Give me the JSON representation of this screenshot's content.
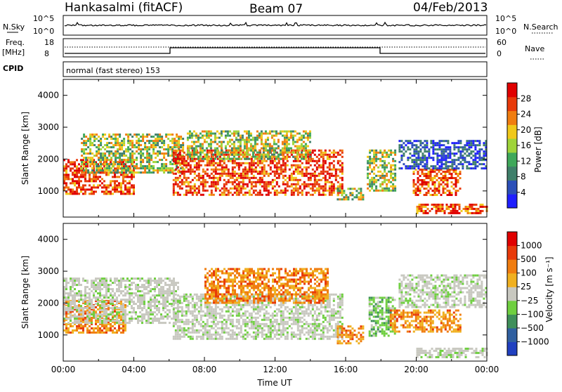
{
  "header": {
    "station": "Hankasalmi (fitACF)",
    "beam": "Beam 07",
    "date": "04/Feb/2013"
  },
  "top_panels": {
    "nsky_label": "N.Sky",
    "nsky_ticks": [
      "10^5",
      "10^0"
    ],
    "nsearch_label": "N.Search",
    "nsearch_ticks": [
      "10^5",
      "10^0"
    ],
    "freq_label_1": "Freq.",
    "freq_label_2": "[MHz]",
    "freq_ticks": [
      "18",
      "8"
    ],
    "nave_label": "Nave",
    "nave_ticks": [
      "60",
      "0"
    ],
    "cpid_label": "CPID",
    "cpid_text": "normal (fast stereo) 153"
  },
  "chart_data": [
    {
      "type": "heatmap",
      "panel": "power",
      "ylabel": "Slant Range [km]",
      "xlabel": "",
      "yticks": [
        "4000",
        "3000",
        "2000",
        "1000"
      ],
      "ylim": [
        180,
        4500
      ],
      "x_range_hours": [
        0,
        24
      ],
      "colorbar_label": "Power [dB]",
      "colorbar_ticks": [
        "28",
        "24",
        "20",
        "16",
        "12",
        "8",
        "4"
      ],
      "colors": [
        "#1f1fff",
        "#2b4fb8",
        "#3f7f6a",
        "#3fa85a",
        "#9fd43a",
        "#f0c81a",
        "#f07d10",
        "#e83a0a",
        "#e00000"
      ],
      "echo_regions": [
        {
          "t0": 0.0,
          "t1": 4.0,
          "r0": 900,
          "r1": 2000,
          "level": "high"
        },
        {
          "t0": 1.0,
          "t1": 6.8,
          "r0": 1600,
          "r1": 2800,
          "level": "mid"
        },
        {
          "t0": 6.2,
          "t1": 15.8,
          "r0": 850,
          "r1": 2300,
          "level": "high"
        },
        {
          "t0": 7.0,
          "t1": 14.0,
          "r0": 2000,
          "r1": 2900,
          "level": "mid"
        },
        {
          "t0": 15.5,
          "t1": 17.0,
          "r0": 750,
          "r1": 1100,
          "level": "mid"
        },
        {
          "t0": 17.2,
          "t1": 18.8,
          "r0": 1000,
          "r1": 2300,
          "level": "mid"
        },
        {
          "t0": 19.8,
          "t1": 22.5,
          "r0": 900,
          "r1": 1700,
          "level": "high"
        },
        {
          "t0": 20.0,
          "t1": 24.0,
          "r0": 300,
          "r1": 600,
          "level": "high"
        },
        {
          "t0": 19.0,
          "t1": 24.0,
          "r0": 1700,
          "r1": 2600,
          "level": "low"
        }
      ]
    },
    {
      "type": "heatmap",
      "panel": "velocity",
      "ylabel": "Slant Range [km]",
      "xlabel": "Time UT",
      "yticks": [
        "4000",
        "3000",
        "2000",
        "1000"
      ],
      "ylim": [
        180,
        4500
      ],
      "x_range_hours": [
        0,
        24
      ],
      "xticks": [
        "00:00",
        "04:00",
        "08:00",
        "12:00",
        "16:00",
        "20:00",
        "00:00"
      ],
      "colorbar_label": "Velocity [m s⁻¹]",
      "colorbar_ticks": [
        "1000",
        "500",
        "100",
        "25",
        "−25",
        "−100",
        "−500",
        "−1000"
      ],
      "colors": [
        "#2040c0",
        "#3060a0",
        "#3f8f5a",
        "#6fcf40",
        "#c8c8c0",
        "#f0b020",
        "#f07d10",
        "#e83a0a",
        "#e00000"
      ],
      "echo_regions": [
        {
          "t0": 0.0,
          "t1": 3.5,
          "r0": 1100,
          "r1": 2100,
          "level": "orange"
        },
        {
          "t0": 0.0,
          "t1": 6.5,
          "r0": 1400,
          "r1": 2800,
          "level": "grey"
        },
        {
          "t0": 6.2,
          "t1": 15.8,
          "r0": 850,
          "r1": 2300,
          "level": "grey"
        },
        {
          "t0": 8.0,
          "t1": 15.0,
          "r0": 2000,
          "r1": 3100,
          "level": "orange"
        },
        {
          "t0": 15.5,
          "t1": 17.0,
          "r0": 750,
          "r1": 1300,
          "level": "orange"
        },
        {
          "t0": 17.3,
          "t1": 18.8,
          "r0": 1000,
          "r1": 2200,
          "level": "green"
        },
        {
          "t0": 18.5,
          "t1": 22.5,
          "r0": 1100,
          "r1": 1800,
          "level": "orange"
        },
        {
          "t0": 19.0,
          "t1": 24.0,
          "r0": 1900,
          "r1": 2900,
          "level": "grey"
        },
        {
          "t0": 20.0,
          "t1": 24.0,
          "r0": 300,
          "r1": 600,
          "level": "grey"
        }
      ]
    }
  ]
}
